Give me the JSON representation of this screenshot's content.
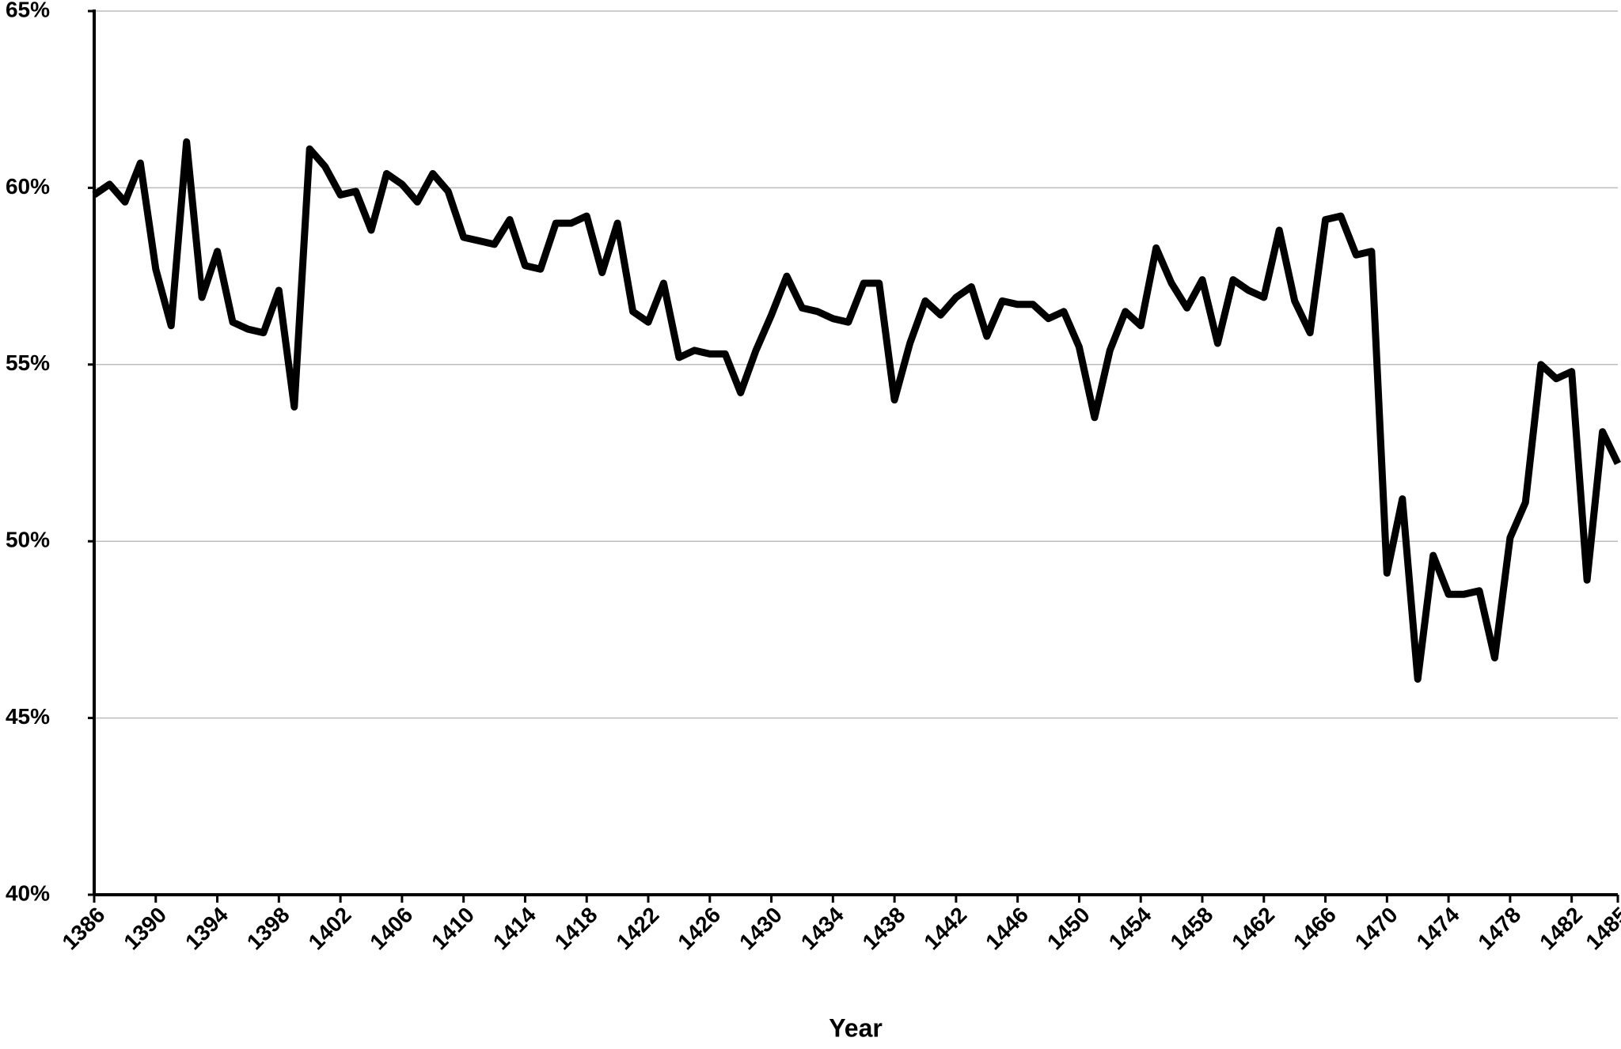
{
  "chart_data": {
    "type": "line",
    "x_label": "Year",
    "x": [
      1386,
      1387,
      1388,
      1389,
      1390,
      1391,
      1392,
      1393,
      1394,
      1395,
      1396,
      1397,
      1398,
      1399,
      1400,
      1401,
      1402,
      1403,
      1404,
      1405,
      1406,
      1407,
      1408,
      1409,
      1410,
      1411,
      1412,
      1413,
      1414,
      1415,
      1416,
      1417,
      1418,
      1419,
      1420,
      1421,
      1422,
      1423,
      1424,
      1425,
      1426,
      1427,
      1428,
      1429,
      1430,
      1431,
      1432,
      1433,
      1434,
      1435,
      1436,
      1437,
      1438,
      1439,
      1440,
      1441,
      1442,
      1443,
      1444,
      1445,
      1446,
      1447,
      1448,
      1449,
      1450,
      1451,
      1452,
      1453,
      1454,
      1455,
      1456,
      1457,
      1458,
      1459,
      1460,
      1461,
      1462,
      1463,
      1464,
      1465,
      1466,
      1467,
      1468,
      1469,
      1470,
      1471,
      1472,
      1473,
      1474,
      1475,
      1476,
      1477,
      1478,
      1479,
      1480,
      1481,
      1482,
      1483,
      1484,
      1485
    ],
    "values": [
      59.8,
      60.1,
      59.6,
      60.7,
      57.7,
      56.1,
      61.3,
      56.9,
      58.2,
      56.2,
      56.0,
      55.9,
      57.1,
      53.8,
      61.1,
      60.6,
      59.8,
      59.9,
      58.8,
      60.4,
      60.1,
      59.6,
      60.4,
      59.9,
      58.6,
      58.5,
      58.4,
      59.1,
      57.8,
      57.7,
      59.0,
      59.0,
      59.2,
      57.6,
      59.0,
      56.5,
      56.2,
      57.3,
      55.2,
      55.4,
      55.3,
      55.3,
      54.2,
      55.4,
      56.4,
      57.5,
      56.6,
      56.5,
      56.3,
      56.2,
      57.3,
      57.3,
      54.0,
      55.6,
      56.8,
      56.4,
      56.9,
      57.2,
      55.8,
      56.8,
      56.7,
      56.7,
      56.3,
      56.5,
      55.5,
      53.5,
      55.4,
      56.5,
      56.1,
      58.3,
      57.3,
      56.6,
      57.4,
      55.6,
      57.4,
      57.1,
      56.9,
      58.8,
      56.8,
      55.9,
      59.1,
      59.2,
      58.1,
      58.2,
      49.1,
      51.2,
      46.1,
      49.6,
      48.5,
      48.5,
      48.6,
      46.7,
      50.1,
      51.1,
      55.0,
      54.6,
      54.8,
      48.9,
      53.1,
      52.2
    ],
    "color": "#000000",
    "xlim": [
      1386,
      1485
    ],
    "xticks": [
      1386,
      1390,
      1394,
      1398,
      1402,
      1406,
      1410,
      1414,
      1418,
      1422,
      1426,
      1430,
      1434,
      1438,
      1442,
      1446,
      1450,
      1454,
      1458,
      1462,
      1466,
      1470,
      1474,
      1478,
      1482,
      1485
    ],
    "ylim": [
      40,
      65
    ],
    "yticks": [
      {
        "value": 40,
        "label": "40%"
      },
      {
        "value": 45,
        "label": "45%"
      },
      {
        "value": 50,
        "label": "50%"
      },
      {
        "value": 55,
        "label": "55%"
      },
      {
        "value": 60,
        "label": "60%"
      },
      {
        "value": 65,
        "label": "65%"
      }
    ],
    "grid": true
  }
}
